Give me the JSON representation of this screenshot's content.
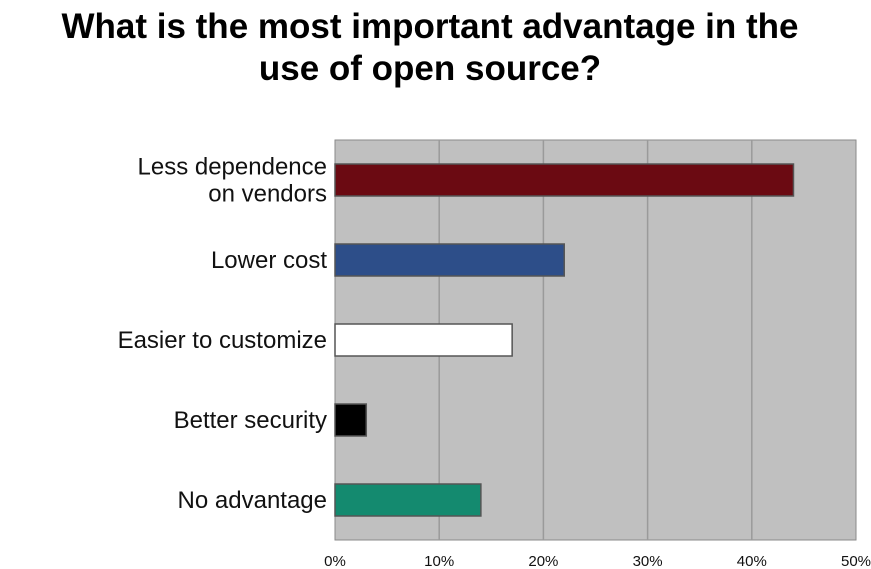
{
  "chart_data": {
    "type": "bar",
    "orientation": "horizontal",
    "title": "What is the most important advantage in the use of open source?",
    "categories": [
      [
        "Less dependence",
        "on vendors"
      ],
      [
        "Lower cost"
      ],
      [
        "Easier to customize"
      ],
      [
        "Better security"
      ],
      [
        "No advantage"
      ]
    ],
    "values": [
      44,
      22,
      17,
      3,
      14
    ],
    "bar_colors": [
      "#6b0a12",
      "#2d4e89",
      "#ffffff",
      "#000000",
      "#148a6f"
    ],
    "xlim": [
      0,
      50
    ],
    "xticks": [
      0,
      10,
      20,
      30,
      40,
      50
    ],
    "xtick_labels": [
      "0%",
      "10%",
      "20%",
      "30%",
      "40%",
      "50%"
    ],
    "xlabel": "",
    "ylabel": "",
    "grid": true,
    "plot_background": "#c0c0c0",
    "grid_color": "#9a9a9a",
    "legend": "none"
  }
}
